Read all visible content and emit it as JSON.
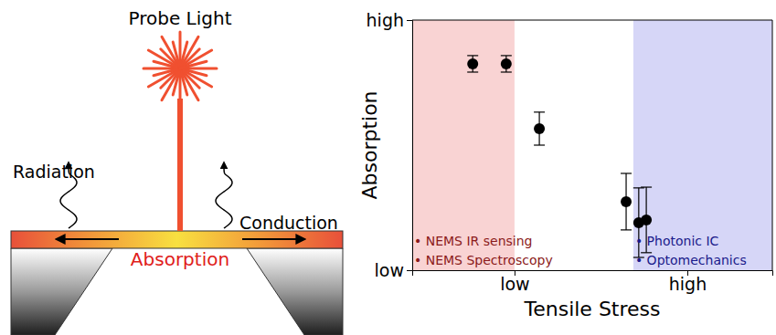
{
  "diagram": {
    "labels": {
      "probe": "Probe Light",
      "radiation": "Radiation",
      "conduction": "Conduction",
      "absorption": "Absorption"
    }
  },
  "chart_data": {
    "type": "scatter",
    "x_label": "Tensile Stress",
    "y_label": "Absorption",
    "x": [
      0.168,
      0.261,
      0.353,
      0.594,
      0.629,
      0.65
    ],
    "values": [
      0.825,
      0.825,
      0.566,
      0.274,
      0.19,
      0.201
    ],
    "errors": [
      0.033,
      0.033,
      0.066,
      0.113,
      0.139,
      0.131
    ],
    "color": "#000000",
    "marker": "circle",
    "xlim": [
      0,
      1
    ],
    "ylim": [
      0,
      1
    ],
    "xticks": [
      {
        "value": 0.284,
        "label": "low"
      },
      {
        "value": 0.764,
        "label": "high"
      }
    ],
    "yticks": [
      {
        "value": 0,
        "label": "low"
      },
      {
        "value": 1,
        "label": "high"
      }
    ],
    "shaded_regions": [
      {
        "x_range": [
          0,
          0.284
        ],
        "color": "#f9d3d3",
        "label_color": "#8b1a1a",
        "labels": [
          "• NEMS IR sensing",
          "• NEMS Spectroscopy"
        ]
      },
      {
        "x_range": [
          0.614,
          1
        ],
        "color": "#d6d6f7",
        "label_color": "#1a1a8b",
        "labels": [
          "• Photonic IC",
          "• Optomechanics"
        ]
      }
    ]
  }
}
